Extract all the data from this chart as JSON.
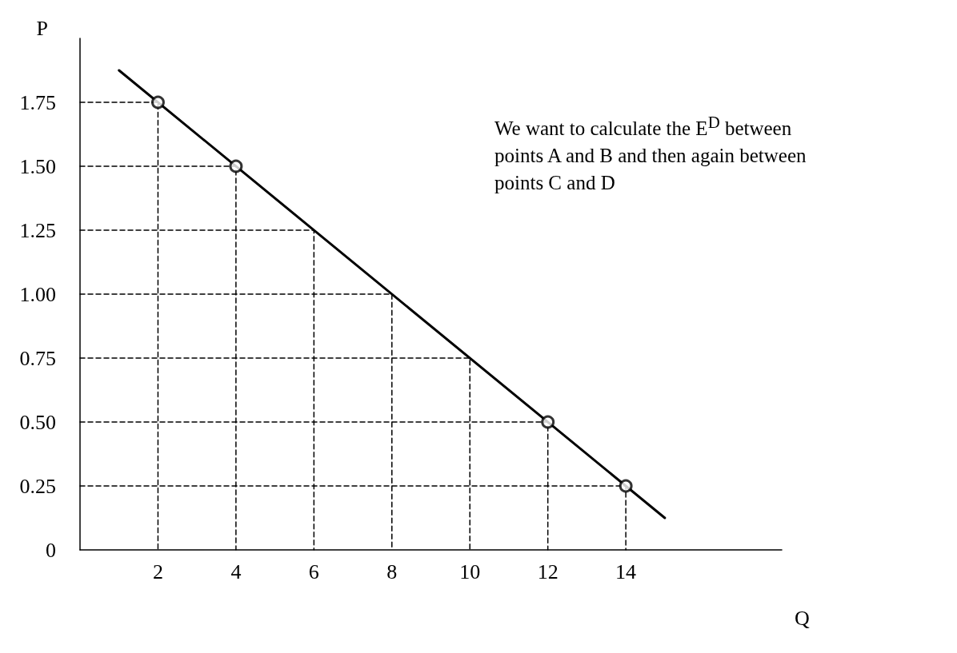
{
  "chart_data": {
    "type": "line",
    "xlabel": "Q",
    "ylabel": "P",
    "annotations": [
      "We want to calculate the E$^{D}$ between points A and B and then again between points C and D"
    ],
    "xlim": [
      0,
      18
    ],
    "xticks": [
      2,
      4,
      6,
      8,
      10,
      12,
      14
    ],
    "ylim": [
      0,
      2
    ],
    "yticks": [
      0,
      0.25,
      {
        "value": 0.5,
        "label": "0.50"
      },
      0.75,
      {
        "value": 1,
        "label": "1.00"
      },
      1.25,
      {
        "value": 1.5,
        "label": "1.50"
      },
      1.75
    ],
    "grid": false,
    "series": [
      {
        "color": "#000000",
        "line_style": "dashed",
        "marker": "none",
        "x": [
          0,
          2,
          2
        ],
        "values": [
          1.75,
          1.75,
          0
        ]
      },
      {
        "color": "#000000",
        "line_style": "dashed",
        "marker": "none",
        "x": [
          0,
          4,
          4
        ],
        "values": [
          1.5,
          1.5,
          0
        ]
      },
      {
        "color": "#000000",
        "line_style": "dashed",
        "marker": "none",
        "x": [
          0,
          6,
          6
        ],
        "values": [
          1.25,
          1.25,
          0
        ]
      },
      {
        "color": "#000000",
        "line_style": "dashed",
        "marker": "none",
        "x": [
          0,
          8,
          8
        ],
        "values": [
          1,
          1,
          0
        ]
      },
      {
        "color": "#000000",
        "line_style": "dashed",
        "marker": "none",
        "x": [
          0,
          10,
          10
        ],
        "values": [
          0.75,
          0.75,
          0
        ]
      },
      {
        "color": "#000000",
        "line_style": "dashed",
        "marker": "none",
        "x": [
          0,
          12,
          12
        ],
        "values": [
          0.5,
          0.5,
          0
        ]
      },
      {
        "color": "#000000",
        "line_style": "dashed",
        "marker": "none",
        "x": [
          0,
          14,
          14
        ],
        "values": [
          0.25,
          0.25,
          0
        ]
      },
      {
        "color": "#000000",
        "line_style": "solid",
        "marker": "none",
        "x": [
          1,
          15
        ],
        "values": [
          1.875,
          0.125
        ]
      },
      {
        "type": "scatter",
        "color": "#000000",
        "marker": "circle",
        "x": [
          2,
          4,
          12,
          14
        ],
        "values": [
          1.75,
          1.5,
          0.5,
          0.25
        ]
      }
    ]
  }
}
